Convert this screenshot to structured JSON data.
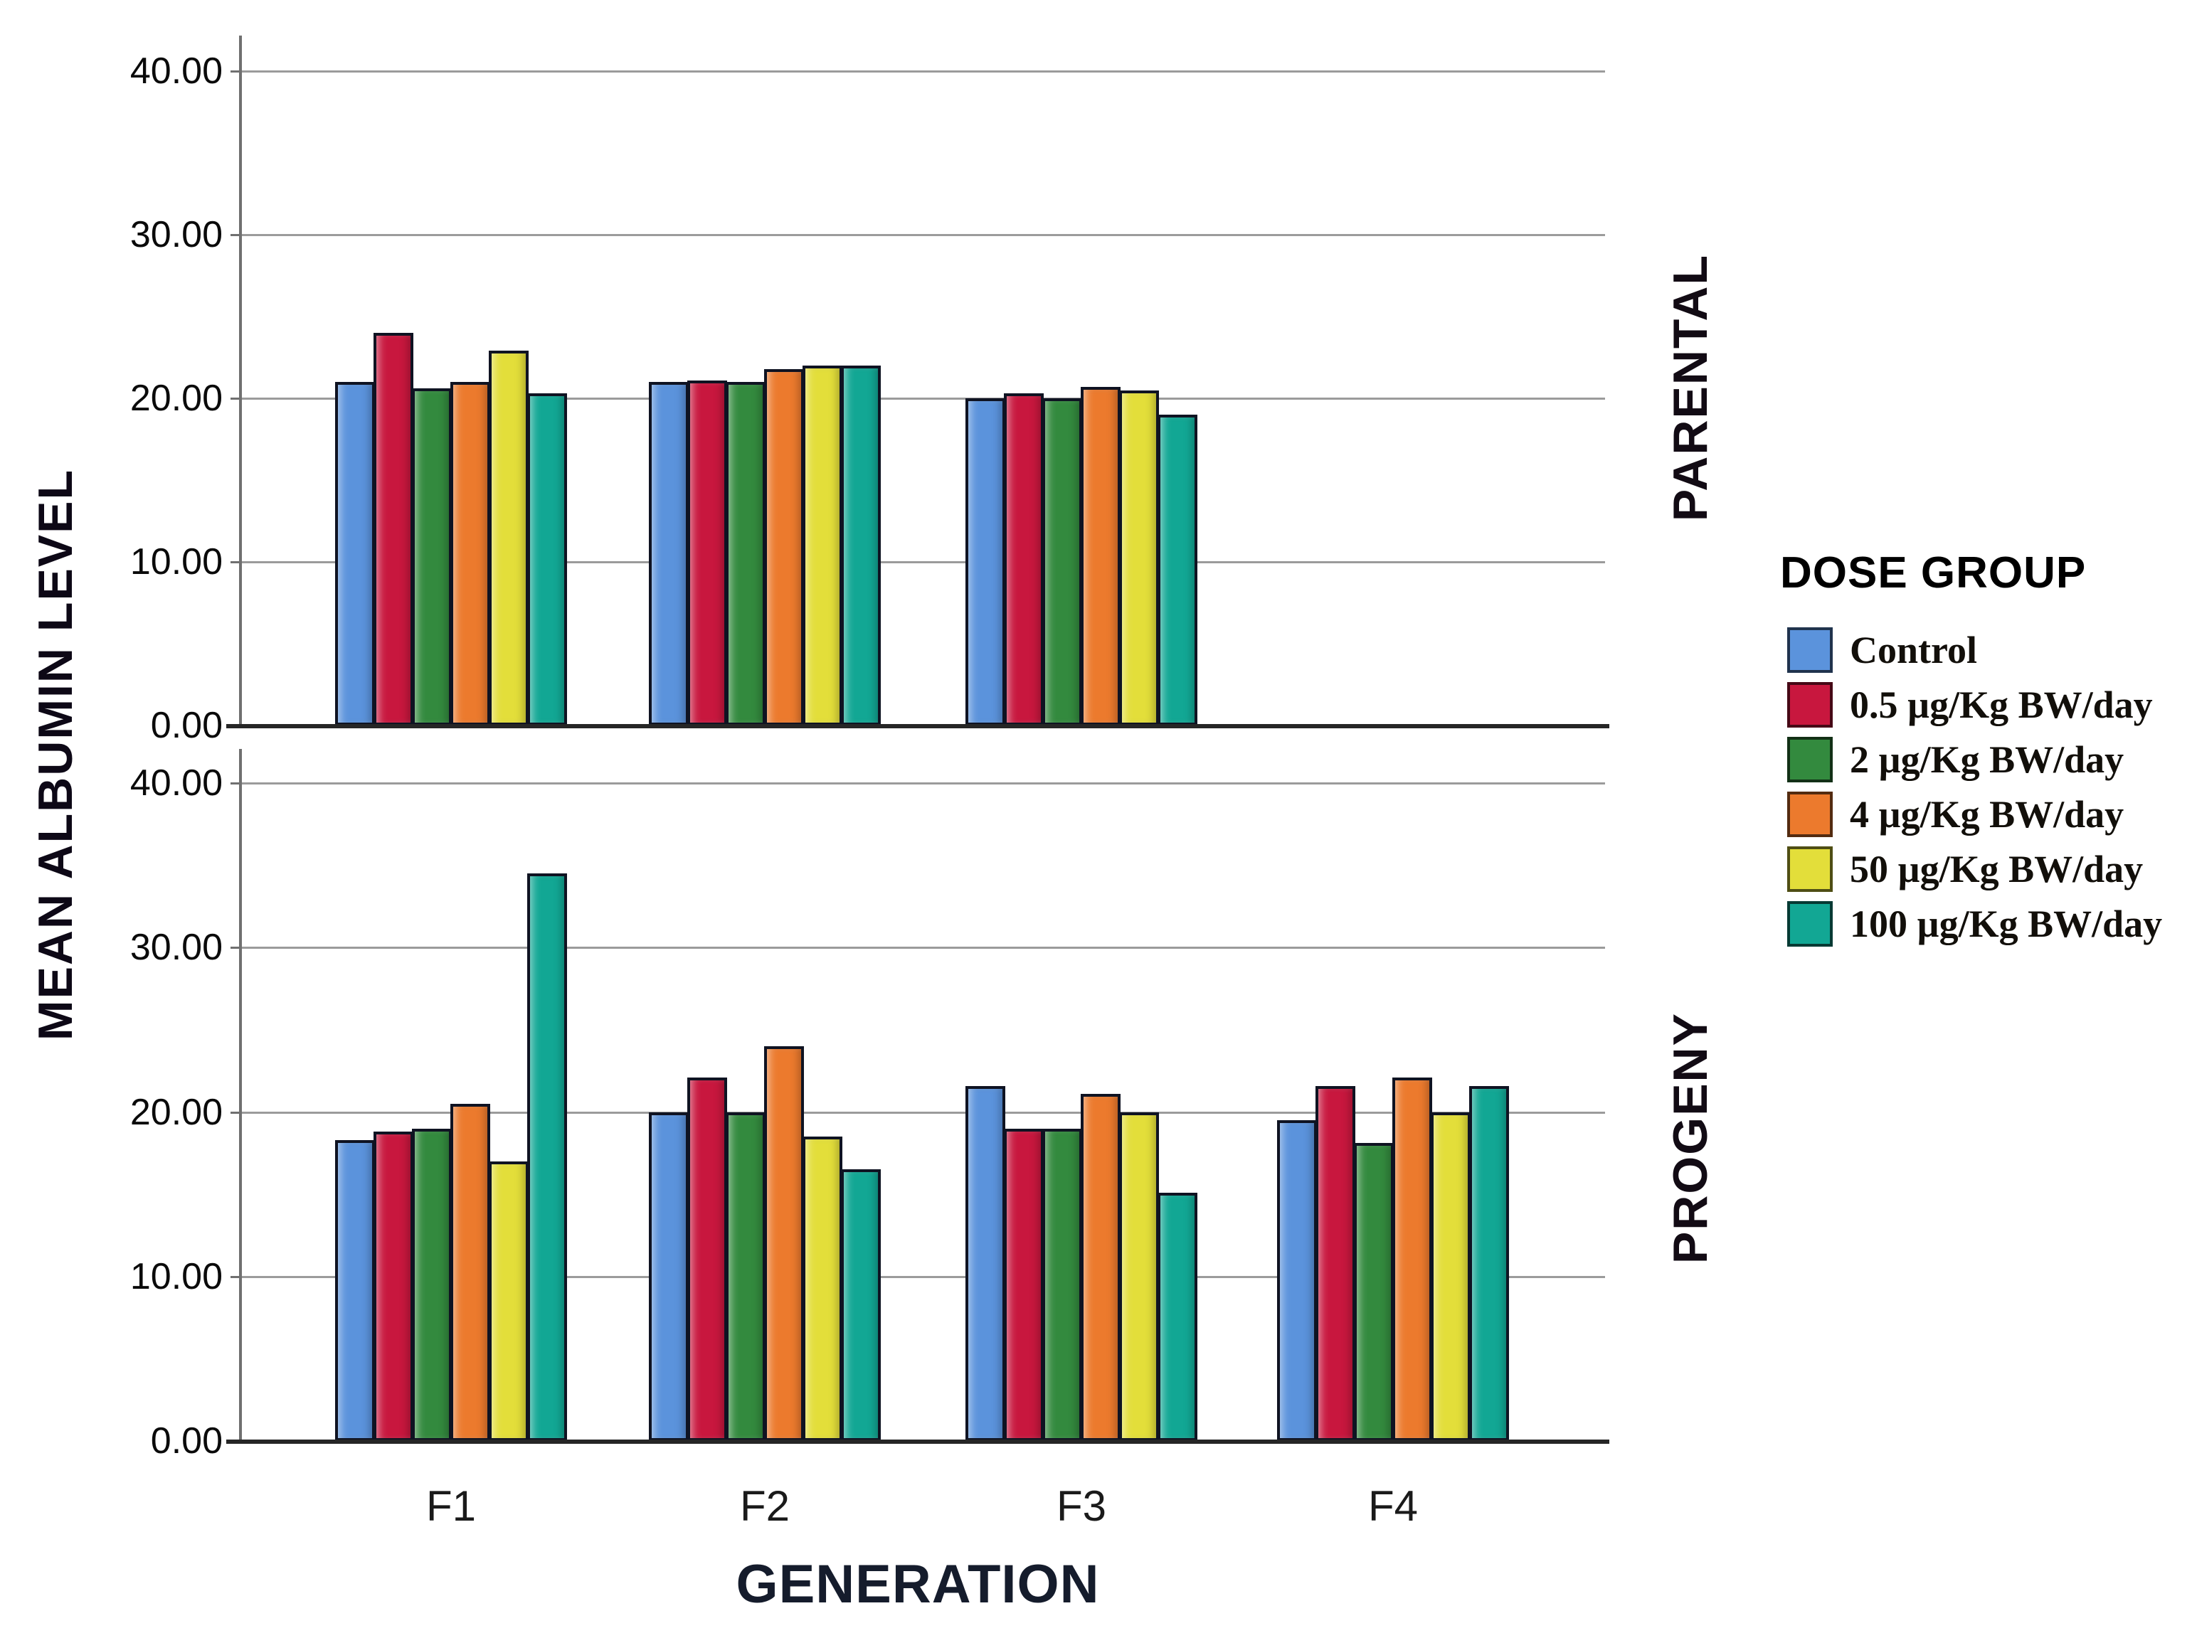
{
  "chart_data": {
    "type": "bar",
    "layout": "two stacked row panels sharing one x axis, legend on right, gridlines on",
    "xlabel": "GENERATION",
    "ylabel": "MEAN ALBUMIN LEVEL",
    "categories": [
      "F1",
      "F2",
      "F3",
      "F4"
    ],
    "y_tick_labels": [
      "0.00",
      "10.00",
      "20.00",
      "30.00",
      "40.00"
    ],
    "y_tick_values": [
      0,
      10,
      20,
      30,
      40
    ],
    "ylim": [
      0,
      42
    ],
    "legend": {
      "title": "DOSE GROUP",
      "position": "right"
    },
    "series": [
      {
        "name": "Control",
        "color": "#5B93DC"
      },
      {
        "name": "0.5 µg/Kg BW/day",
        "color": "#C8173E"
      },
      {
        "name": "2 µg/Kg BW/day",
        "color": "#338A3E"
      },
      {
        "name": "4 µg/Kg BW/day",
        "color": "#EC7A2D"
      },
      {
        "name": "50 µg/Kg BW/day",
        "color": "#E3DE3A"
      },
      {
        "name": "100 µg/Kg BW/day",
        "color": "#12A794"
      }
    ],
    "panels": [
      {
        "label": "PARENTAL",
        "series": [
          {
            "name": "Control",
            "values": [
              21.0,
              21.0,
              20.0,
              null
            ]
          },
          {
            "name": "0.5 µg/Kg BW/day",
            "values": [
              24.0,
              21.1,
              20.3,
              null
            ]
          },
          {
            "name": "2 µg/Kg BW/day",
            "values": [
              20.6,
              21.0,
              20.0,
              null
            ]
          },
          {
            "name": "4 µg/Kg BW/day",
            "values": [
              21.0,
              21.8,
              20.7,
              null
            ]
          },
          {
            "name": "50 µg/Kg BW/day",
            "values": [
              22.9,
              22.0,
              20.5,
              null
            ]
          },
          {
            "name": "100 µg/Kg BW/day",
            "values": [
              20.3,
              22.0,
              19.0,
              null
            ]
          }
        ]
      },
      {
        "label": "PROGENY",
        "series": [
          {
            "name": "Control",
            "values": [
              18.3,
              20.0,
              21.6,
              19.5
            ]
          },
          {
            "name": "0.5 µg/Kg BW/day",
            "values": [
              18.8,
              22.1,
              19.0,
              21.6
            ]
          },
          {
            "name": "2 µg/Kg BW/day",
            "values": [
              19.0,
              20.0,
              19.0,
              18.1
            ]
          },
          {
            "name": "4 µg/Kg BW/day",
            "values": [
              20.5,
              24.0,
              21.1,
              22.1
            ]
          },
          {
            "name": "50 µg/Kg BW/day",
            "values": [
              17.0,
              18.5,
              20.0,
              20.0
            ]
          },
          {
            "name": "100 µg/Kg BW/day",
            "values": [
              34.5,
              16.5,
              15.1,
              21.6
            ]
          }
        ]
      }
    ]
  }
}
